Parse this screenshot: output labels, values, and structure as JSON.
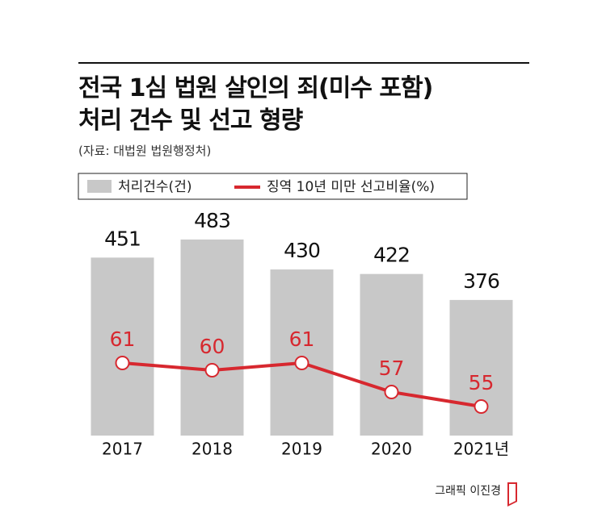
{
  "chart_data": {
    "type": "bar_line",
    "title": "전국 1심 법원 살인의 죄(미수 포함)\n처리 건수 및 선고 형량",
    "source": "(자료: 대법원 법원행정처)",
    "categories": [
      "2017",
      "2018",
      "2019",
      "2020",
      "2021년"
    ],
    "series": [
      {
        "name": "처리건수(건)",
        "color": "#c8c8c8",
        "type": "bar",
        "values": [
          451,
          483,
          430,
          422,
          376
        ]
      },
      {
        "name": "징역 10년 미만 선고비율(%)",
        "color": "#d7282f",
        "type": "line",
        "axis": "y2",
        "values": [
          61,
          60,
          61,
          57,
          55
        ]
      }
    ],
    "ylim": [
      136,
      560
    ],
    "y2lim": [
      51,
      84
    ]
  },
  "credit": "그래픽 이진경"
}
